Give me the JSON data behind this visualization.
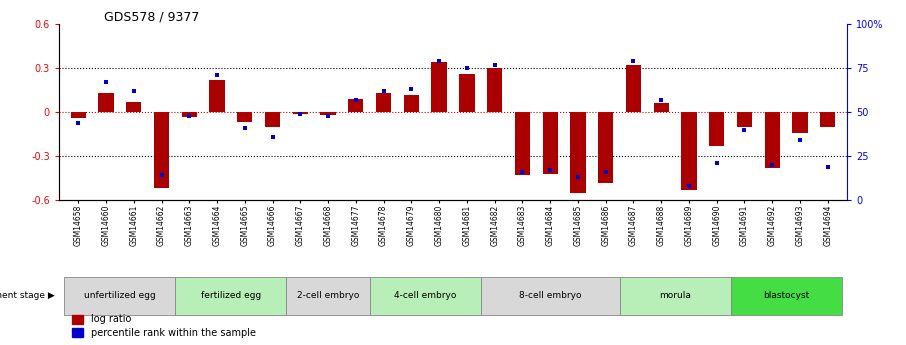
{
  "title": "GDS578 / 9377",
  "samples": [
    "GSM14658",
    "GSM14660",
    "GSM14661",
    "GSM14662",
    "GSM14663",
    "GSM14664",
    "GSM14665",
    "GSM14666",
    "GSM14667",
    "GSM14668",
    "GSM14677",
    "GSM14678",
    "GSM14679",
    "GSM14680",
    "GSM14681",
    "GSM14682",
    "GSM14683",
    "GSM14684",
    "GSM14685",
    "GSM14686",
    "GSM14687",
    "GSM14688",
    "GSM14689",
    "GSM14690",
    "GSM14691",
    "GSM14692",
    "GSM14693",
    "GSM14694"
  ],
  "log_ratio": [
    -0.04,
    0.13,
    0.07,
    -0.52,
    -0.03,
    0.22,
    -0.07,
    -0.1,
    -0.01,
    -0.02,
    0.09,
    0.13,
    0.12,
    0.34,
    0.26,
    0.3,
    -0.43,
    -0.42,
    -0.55,
    -0.48,
    0.32,
    0.06,
    -0.53,
    -0.23,
    -0.1,
    -0.38,
    -0.14,
    -0.1
  ],
  "percentile_rank": [
    44,
    67,
    62,
    14,
    48,
    71,
    41,
    36,
    49,
    48,
    57,
    62,
    63,
    79,
    75,
    77,
    16,
    17,
    13,
    16,
    79,
    57,
    8,
    21,
    40,
    20,
    34,
    19
  ],
  "stage_groups": [
    {
      "label": "unfertilized egg",
      "start": 0,
      "end": 4,
      "color": "#d8d8d8"
    },
    {
      "label": "fertilized egg",
      "start": 4,
      "end": 8,
      "color": "#b8eeb8"
    },
    {
      "label": "2-cell embryo",
      "start": 8,
      "end": 11,
      "color": "#d8d8d8"
    },
    {
      "label": "4-cell embryo",
      "start": 11,
      "end": 15,
      "color": "#b8eeb8"
    },
    {
      "label": "8-cell embryo",
      "start": 15,
      "end": 20,
      "color": "#d8d8d8"
    },
    {
      "label": "morula",
      "start": 20,
      "end": 24,
      "color": "#b8eeb8"
    },
    {
      "label": "blastocyst",
      "start": 24,
      "end": 28,
      "color": "#44dd44"
    }
  ],
  "ylim_left": [
    -0.6,
    0.6
  ],
  "ylim_right": [
    0,
    100
  ],
  "bar_color": "#aa0000",
  "dot_color": "#0000cc",
  "zero_line_color": "#cc0000",
  "dotted_lines": [
    0.3,
    -0.3
  ],
  "bar_width": 0.55
}
